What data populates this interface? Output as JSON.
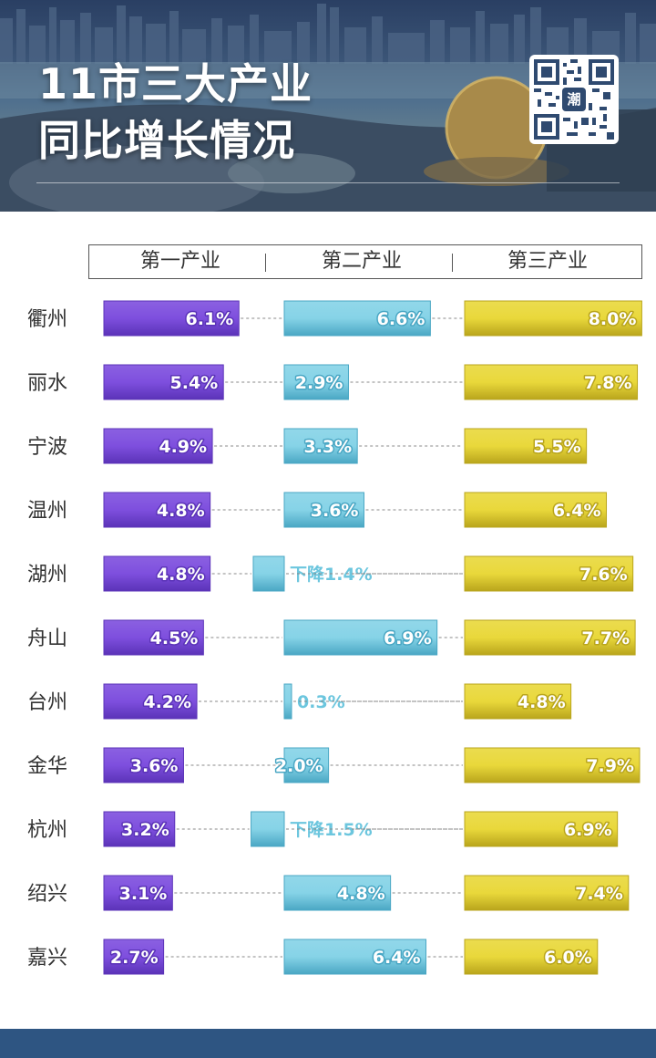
{
  "header": {
    "title_line_1": "11市三大产业",
    "title_line_2": "同比增长情况",
    "qr_center_char": "潮"
  },
  "colors": {
    "primary_industry": "#7e4fde",
    "secondary_industry": "#86d3e7",
    "tertiary_industry": "#e9d83b",
    "footer": "#2e5582"
  },
  "chart_data": {
    "type": "bar",
    "layout": "three side-by-side horizontal bar columns with a shared city axis",
    "title": "11市三大产业同比增长情况",
    "categories": [
      "衢州",
      "丽水",
      "宁波",
      "温州",
      "湖州",
      "舟山",
      "台州",
      "金华",
      "杭州",
      "绍兴",
      "嘉兴"
    ],
    "unit": "%",
    "series": [
      {
        "name": "第一产业",
        "values": [
          6.1,
          5.4,
          4.9,
          4.8,
          4.8,
          4.5,
          4.2,
          3.6,
          3.2,
          3.1,
          2.7
        ],
        "labels": [
          "6.1%",
          "5.4%",
          "4.9%",
          "4.8%",
          "4.8%",
          "4.5%",
          "4.2%",
          "3.6%",
          "3.2%",
          "3.1%",
          "2.7%"
        ]
      },
      {
        "name": "第二产业",
        "values": [
          6.6,
          2.9,
          3.3,
          3.6,
          -1.4,
          6.9,
          0.3,
          2.0,
          -1.5,
          4.8,
          6.4
        ],
        "labels": [
          "6.6%",
          "2.9%",
          "3.3%",
          "3.6%",
          "下降1.4%",
          "6.9%",
          "0.3%",
          "2.0%",
          "下降1.5%",
          "4.8%",
          "6.4%"
        ]
      },
      {
        "name": "第三产业",
        "values": [
          8.0,
          7.8,
          5.5,
          6.4,
          7.6,
          7.7,
          4.8,
          7.9,
          6.9,
          7.4,
          6.0
        ],
        "labels": [
          "8.0%",
          "7.8%",
          "5.5%",
          "6.4%",
          "7.6%",
          "7.7%",
          "4.8%",
          "7.9%",
          "6.9%",
          "7.4%",
          "6.0%"
        ]
      }
    ],
    "legend": "top header row",
    "grid": false
  }
}
